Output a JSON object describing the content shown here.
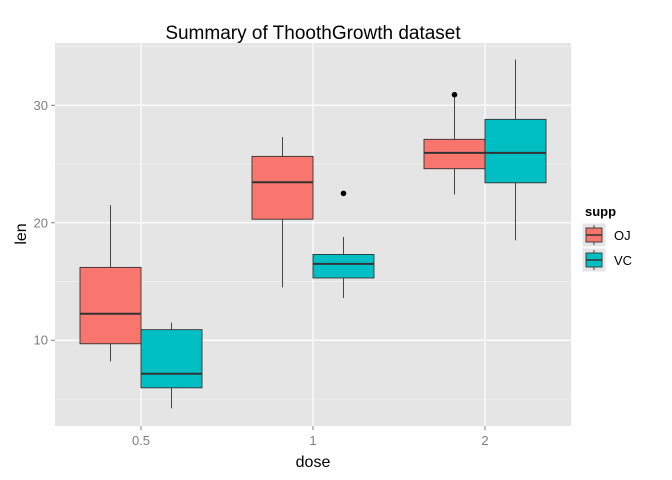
{
  "chart_data": {
    "type": "boxplot",
    "title": "Summary of ThoothGrowth dataset",
    "xlabel": "dose",
    "ylabel": "len",
    "categories": [
      "0.5",
      "1",
      "2"
    ],
    "ylim": [
      2.7,
      35.3
    ],
    "yticks": [
      10,
      20,
      30
    ],
    "grid": true,
    "legend": {
      "title": "supp",
      "position": "right",
      "entries": [
        "OJ",
        "VC"
      ]
    },
    "colors": {
      "OJ": "#F8766D",
      "VC": "#00BFC4",
      "panel": "#E5E5E5",
      "grid": "#FFFFFF",
      "median": "#333333"
    },
    "series": [
      {
        "name": "OJ",
        "boxes": [
          {
            "category": "0.5",
            "min": 8.2,
            "q1": 9.7,
            "median": 12.25,
            "q3": 16.2,
            "max": 21.5,
            "outliers": []
          },
          {
            "category": "1",
            "min": 14.5,
            "q1": 20.3,
            "median": 23.45,
            "q3": 25.65,
            "max": 27.3,
            "outliers": []
          },
          {
            "category": "2",
            "min": 22.4,
            "q1": 24.6,
            "median": 25.95,
            "q3": 27.1,
            "max": 30.9,
            "outliers": [
              30.9
            ]
          }
        ]
      },
      {
        "name": "VC",
        "boxes": [
          {
            "category": "0.5",
            "min": 4.2,
            "q1": 5.95,
            "median": 7.15,
            "q3": 10.9,
            "max": 11.5,
            "outliers": []
          },
          {
            "category": "1",
            "min": 13.6,
            "q1": 15.3,
            "median": 16.5,
            "q3": 17.3,
            "max": 18.8,
            "outliers": [
              22.5
            ]
          },
          {
            "category": "2",
            "min": 18.5,
            "q1": 23.4,
            "median": 25.95,
            "q3": 28.8,
            "max": 33.9,
            "outliers": []
          }
        ]
      }
    ]
  }
}
